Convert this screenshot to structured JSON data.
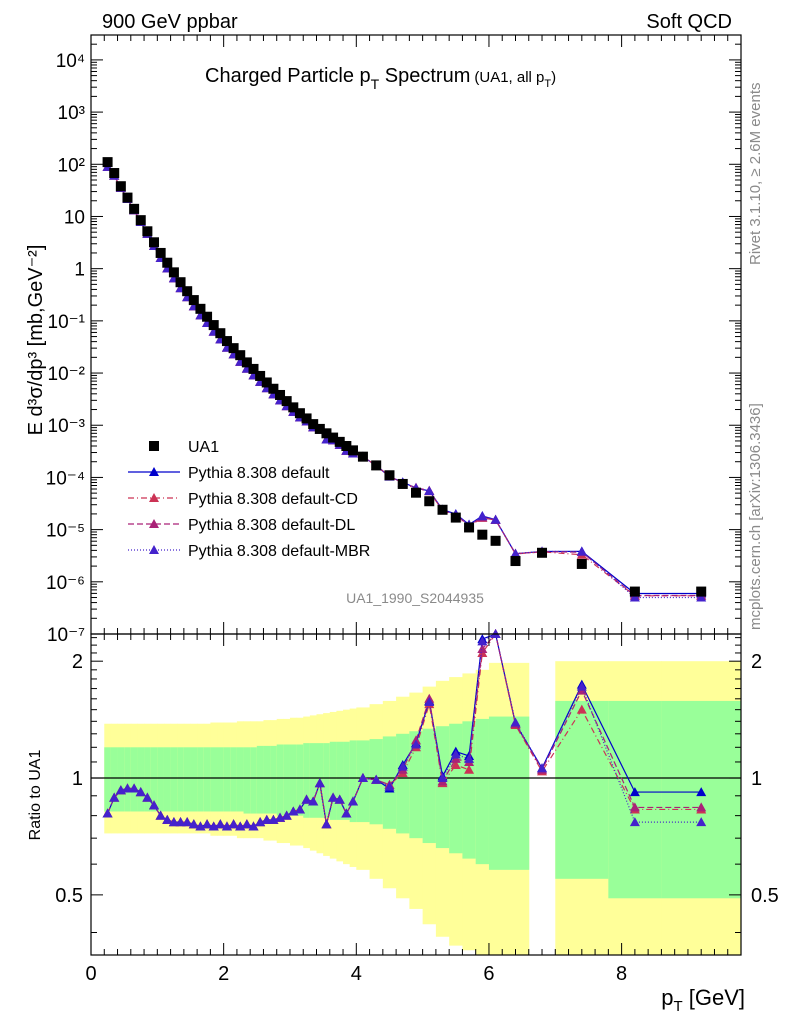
{
  "header": {
    "left": "900 GeV ppbar",
    "right": "Soft QCD"
  },
  "chart_data": {
    "type": "scatter",
    "title_main": "Charged Particle p",
    "title_sub": "T",
    "title_main2": " Spectrum",
    "title_paren": "(UA1, all p",
    "title_paren_sub": "T",
    "title_paren_end": ")",
    "ylabel": "E d³σ/dp³ [mb,GeV⁻²]",
    "ratio_ylabel": "Ratio to UA1",
    "xlabel": "p",
    "xlabel_sub": "T",
    "xlabel_unit": " [GeV]",
    "watermark": "UA1_1990_S2044935",
    "side_top": "Rivet 3.1.10, ≥ 2.6M events",
    "side_bottom": "mcplots.cern.ch [arXiv:1306.3436]",
    "xlim": [
      0,
      9.8
    ],
    "ylim": [
      1e-07,
      30000.0
    ],
    "yscale": "log",
    "ratio_ylim": [
      0.35,
      2.35
    ],
    "ratio_yscale": "log",
    "x_ticks": [
      "0",
      "2",
      "4",
      "6",
      "8"
    ],
    "y_ticks": [
      "10⁻⁷",
      "10⁻⁶",
      "10⁻⁵",
      "10⁻⁴",
      "10⁻³",
      "10⁻²",
      "10⁻¹",
      "1",
      "10",
      "10²",
      "10³",
      "10⁴"
    ],
    "ratio_ticks": [
      "0.5",
      "1",
      "2"
    ],
    "x": [
      0.25,
      0.35,
      0.45,
      0.55,
      0.65,
      0.75,
      0.85,
      0.95,
      1.05,
      1.15,
      1.25,
      1.35,
      1.45,
      1.55,
      1.65,
      1.75,
      1.85,
      1.95,
      2.05,
      2.15,
      2.25,
      2.35,
      2.45,
      2.55,
      2.65,
      2.75,
      2.85,
      2.95,
      3.05,
      3.15,
      3.25,
      3.35,
      3.45,
      3.55,
      3.65,
      3.75,
      3.85,
      3.95,
      4.1,
      4.3,
      4.5,
      4.7,
      4.9,
      5.1,
      5.3,
      5.5,
      5.7,
      5.9,
      6.1,
      6.4,
      6.8,
      7.4,
      8.2,
      9.2
    ],
    "series": [
      {
        "name": "UA1",
        "color": "#000000",
        "marker": "square",
        "values": [
          110,
          68,
          38,
          23,
          14,
          8.5,
          5.2,
          3.2,
          2.0,
          1.3,
          0.85,
          0.55,
          0.37,
          0.25,
          0.17,
          0.12,
          0.083,
          0.058,
          0.041,
          0.03,
          0.022,
          0.016,
          0.012,
          0.0088,
          0.0066,
          0.005,
          0.0038,
          0.0029,
          0.0022,
          0.0017,
          0.00135,
          0.00105,
          0.00085,
          0.0007,
          0.00058,
          0.00048,
          0.0004,
          0.00033,
          0.00025,
          0.00017,
          0.00011,
          7.5e-05,
          5.1e-05,
          3.5e-05,
          2.4e-05,
          1.7e-05,
          1.1e-05,
          8e-06,
          6.1e-06,
          2.5e-06,
          3.6e-06,
          2.2e-06,
          6.5e-07,
          6.5e-07
        ]
      },
      {
        "name": "Pythia 8.308 default",
        "color": "#0000cc",
        "marker": "triangle",
        "line": "solid",
        "ratio": [
          0.81,
          0.89,
          0.93,
          0.94,
          0.94,
          0.92,
          0.89,
          0.85,
          0.8,
          0.78,
          0.77,
          0.77,
          0.77,
          0.76,
          0.75,
          0.76,
          0.75,
          0.76,
          0.75,
          0.76,
          0.75,
          0.76,
          0.75,
          0.77,
          0.78,
          0.78,
          0.79,
          0.8,
          0.82,
          0.83,
          0.88,
          0.87,
          0.97,
          0.76,
          0.89,
          0.88,
          0.81,
          0.87,
          1.0,
          0.99,
          0.94,
          1.08,
          1.23,
          1.58,
          1.01,
          1.17,
          1.14,
          2.28,
          2.55,
          1.38,
          1.06,
          1.74,
          0.92,
          0.92
        ]
      },
      {
        "name": "Pythia 8.308 default-CD",
        "color": "#cc3355",
        "marker": "triangle",
        "line": "dashdot",
        "ratio": [
          0.81,
          0.89,
          0.93,
          0.94,
          0.94,
          0.92,
          0.89,
          0.85,
          0.8,
          0.78,
          0.77,
          0.77,
          0.77,
          0.76,
          0.75,
          0.76,
          0.75,
          0.76,
          0.75,
          0.76,
          0.75,
          0.76,
          0.75,
          0.77,
          0.78,
          0.78,
          0.79,
          0.8,
          0.82,
          0.83,
          0.88,
          0.87,
          0.97,
          0.76,
          0.89,
          0.88,
          0.81,
          0.87,
          1.0,
          0.99,
          0.96,
          1.03,
          1.2,
          1.55,
          0.97,
          1.08,
          1.05,
          2.1,
          2.5,
          1.37,
          1.04,
          1.5,
          0.83,
          0.83
        ]
      },
      {
        "name": "Pythia 8.308 default-DL",
        "color": "#aa2277",
        "marker": "triangle",
        "line": "dashed",
        "ratio": [
          0.81,
          0.89,
          0.93,
          0.94,
          0.94,
          0.92,
          0.89,
          0.85,
          0.8,
          0.78,
          0.77,
          0.77,
          0.77,
          0.76,
          0.75,
          0.76,
          0.75,
          0.76,
          0.75,
          0.76,
          0.75,
          0.76,
          0.75,
          0.77,
          0.78,
          0.78,
          0.79,
          0.8,
          0.82,
          0.83,
          0.88,
          0.87,
          0.97,
          0.76,
          0.89,
          0.88,
          0.81,
          0.87,
          1.0,
          0.99,
          0.96,
          1.05,
          1.25,
          1.6,
          0.98,
          1.12,
          1.1,
          2.15,
          2.52,
          1.38,
          1.05,
          1.68,
          0.84,
          0.84
        ]
      },
      {
        "name": "Pythia 8.308 default-MBR",
        "color": "#4422cc",
        "marker": "triangle",
        "line": "dotted",
        "ratio": [
          0.81,
          0.89,
          0.93,
          0.94,
          0.94,
          0.92,
          0.89,
          0.85,
          0.8,
          0.78,
          0.77,
          0.77,
          0.77,
          0.76,
          0.75,
          0.76,
          0.75,
          0.76,
          0.75,
          0.76,
          0.75,
          0.76,
          0.75,
          0.77,
          0.78,
          0.78,
          0.79,
          0.8,
          0.82,
          0.83,
          0.88,
          0.87,
          0.97,
          0.76,
          0.89,
          0.88,
          0.81,
          0.87,
          1.0,
          0.99,
          0.95,
          1.07,
          1.22,
          1.57,
          1.0,
          1.15,
          1.12,
          2.25,
          2.54,
          1.39,
          1.06,
          1.72,
          0.77,
          0.77
        ]
      }
    ],
    "bands": {
      "x_edges": [
        0.2,
        0.3,
        0.4,
        0.5,
        0.6,
        0.7,
        0.8,
        0.9,
        1.0,
        1.1,
        1.2,
        1.3,
        1.4,
        1.5,
        1.6,
        1.7,
        1.8,
        1.9,
        2.0,
        2.1,
        2.2,
        2.3,
        2.4,
        2.5,
        2.6,
        2.7,
        2.8,
        2.9,
        3.0,
        3.1,
        3.2,
        3.3,
        3.4,
        3.5,
        3.6,
        3.7,
        3.8,
        3.9,
        4.0,
        4.2,
        4.4,
        4.6,
        4.8,
        5.0,
        5.2,
        5.4,
        5.6,
        5.8,
        6.0,
        6.6,
        7.0,
        7.8,
        8.6,
        9.8
      ],
      "green_lo": [
        0.82,
        0.82,
        0.82,
        0.82,
        0.82,
        0.82,
        0.82,
        0.82,
        0.82,
        0.82,
        0.82,
        0.82,
        0.82,
        0.82,
        0.82,
        0.82,
        0.82,
        0.82,
        0.82,
        0.82,
        0.82,
        0.81,
        0.81,
        0.81,
        0.81,
        0.81,
        0.8,
        0.8,
        0.8,
        0.8,
        0.79,
        0.79,
        0.79,
        0.79,
        0.78,
        0.78,
        0.78,
        0.77,
        0.77,
        0.76,
        0.74,
        0.72,
        0.7,
        0.68,
        0.66,
        0.64,
        0.62,
        0.6,
        0.58,
        0.56,
        0.55,
        0.49,
        0.49
      ],
      "green_hi": [
        1.2,
        1.2,
        1.2,
        1.2,
        1.2,
        1.2,
        1.2,
        1.2,
        1.2,
        1.2,
        1.2,
        1.2,
        1.2,
        1.2,
        1.2,
        1.2,
        1.2,
        1.2,
        1.2,
        1.2,
        1.2,
        1.2,
        1.2,
        1.21,
        1.21,
        1.21,
        1.22,
        1.22,
        1.22,
        1.22,
        1.23,
        1.23,
        1.23,
        1.23,
        1.24,
        1.24,
        1.24,
        1.25,
        1.25,
        1.26,
        1.28,
        1.3,
        1.32,
        1.34,
        1.36,
        1.38,
        1.4,
        1.42,
        1.44,
        1.58,
        1.58,
        1.58,
        1.58
      ],
      "yellow_lo": [
        0.72,
        0.72,
        0.72,
        0.72,
        0.72,
        0.72,
        0.72,
        0.72,
        0.72,
        0.72,
        0.72,
        0.72,
        0.72,
        0.72,
        0.72,
        0.72,
        0.71,
        0.71,
        0.71,
        0.71,
        0.7,
        0.7,
        0.7,
        0.7,
        0.69,
        0.69,
        0.68,
        0.68,
        0.67,
        0.67,
        0.66,
        0.65,
        0.64,
        0.63,
        0.62,
        0.61,
        0.6,
        0.59,
        0.58,
        0.55,
        0.52,
        0.49,
        0.46,
        0.42,
        0.39,
        0.37,
        0.36,
        0.35,
        0.35,
        0.35,
        0.35,
        0.35,
        0.35
      ],
      "yellow_hi": [
        1.38,
        1.38,
        1.38,
        1.38,
        1.38,
        1.38,
        1.38,
        1.38,
        1.38,
        1.38,
        1.38,
        1.38,
        1.38,
        1.38,
        1.38,
        1.38,
        1.39,
        1.39,
        1.39,
        1.39,
        1.4,
        1.4,
        1.4,
        1.4,
        1.41,
        1.41,
        1.42,
        1.42,
        1.43,
        1.43,
        1.44,
        1.45,
        1.46,
        1.47,
        1.48,
        1.49,
        1.5,
        1.51,
        1.52,
        1.55,
        1.58,
        1.62,
        1.66,
        1.72,
        1.78,
        1.82,
        1.86,
        1.9,
        1.98,
        1.72,
        2.0,
        2.0,
        2.0
      ]
    },
    "legend": [
      "UA1",
      "Pythia 8.308 default",
      "Pythia 8.308 default-CD",
      "Pythia 8.308 default-DL",
      "Pythia 8.308 default-MBR"
    ],
    "legend_position": "lower-left"
  }
}
